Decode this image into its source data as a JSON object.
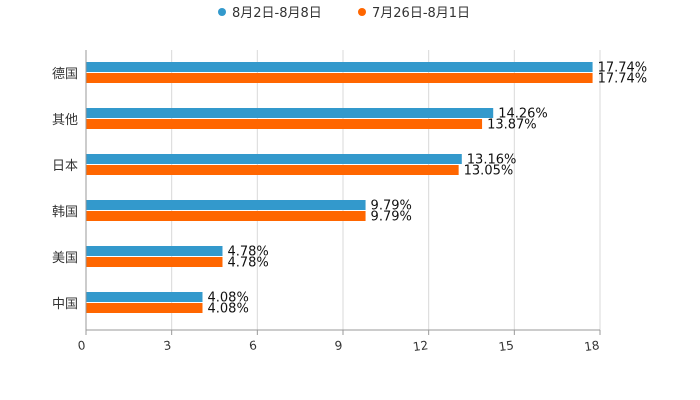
{
  "chart_data": {
    "type": "bar",
    "orientation": "horizontal",
    "categories": [
      "德国",
      "其他",
      "日本",
      "韩国",
      "美国",
      "中国"
    ],
    "series": [
      {
        "name": "8月2日-8月8日",
        "color": "#3399cc",
        "values": [
          17.74,
          14.26,
          13.16,
          9.79,
          4.78,
          4.08
        ],
        "labels": [
          "17.74%",
          "14.26%",
          "13.16%",
          "9.79%",
          "4.78%",
          "4.08%"
        ]
      },
      {
        "name": "7月26日-8月1日",
        "color": "#ff6600",
        "values": [
          17.74,
          13.87,
          13.05,
          9.79,
          4.78,
          4.08
        ],
        "labels": [
          "17.74%",
          "13.87%",
          "13.05%",
          "9.79%",
          "4.78%",
          "4.08%"
        ]
      }
    ],
    "xlim": [
      0,
      18
    ],
    "xticks": [
      "0",
      "3",
      "6",
      "9",
      "12",
      "15",
      "18"
    ],
    "grid": true,
    "legend_position": "top-center"
  }
}
